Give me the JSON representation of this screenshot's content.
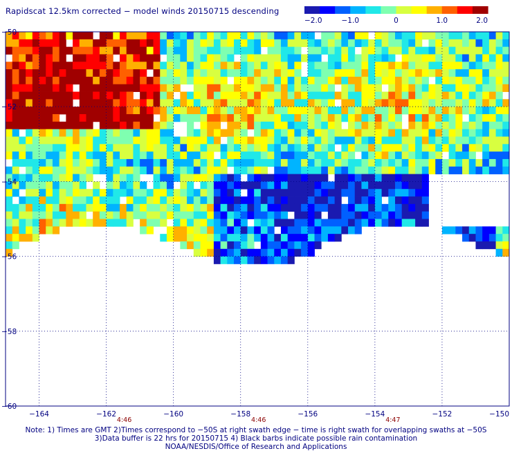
{
  "title": "Rapidscat 12.5km corrected − model winds 20150715 descending",
  "colorbar": {
    "min": -2.0,
    "max": 2.0,
    "tick_labels": [
      "−2.0",
      "−1.0",
      "0",
      "1.0",
      "2.0"
    ],
    "tick_values": [
      -2.0,
      -1.0,
      0,
      1.0,
      2.0
    ],
    "colors": [
      "#1a1ab0",
      "#0000ff",
      "#0060ff",
      "#00b4ff",
      "#20e8e8",
      "#7fffb0",
      "#d8ff40",
      "#ffff00",
      "#ffb000",
      "#ff6000",
      "#ff0000",
      "#a00000"
    ]
  },
  "chart_data": {
    "type": "heatmap",
    "title": "Rapidscat 12.5km corrected − model winds 20150715 descending",
    "xlabel": "",
    "ylabel": "",
    "xlim": [
      -165,
      -150
    ],
    "ylim": [
      -60,
      -50
    ],
    "x_ticks": [
      -164,
      -162,
      -160,
      -158,
      -156,
      -154,
      -152,
      -150
    ],
    "x_tick_labels": [
      "−164",
      "−162",
      "−160",
      "−158",
      "−156",
      "−154",
      "−152",
      "−150"
    ],
    "y_ticks": [
      -50,
      -52,
      -54,
      -56,
      -58,
      -60
    ],
    "y_tick_labels": [
      "−50",
      "−52",
      "−54",
      "−56",
      "−58",
      "−60"
    ],
    "time_labels": [
      {
        "lon": -162,
        "text": "4:46"
      },
      {
        "lon": -158,
        "text": "4:46"
      },
      {
        "lon": -154,
        "text": "4:47"
      }
    ],
    "grid": true,
    "value_range": [
      -2.0,
      2.0
    ],
    "cell_deg": 0.2,
    "data_extent_lat": [
      -56.3,
      -50.0
    ],
    "data_extent_lon": [
      -165,
      -150
    ],
    "description_regions": [
      {
        "name": "high-bias-northwest",
        "lon": [
          -165,
          -160.5
        ],
        "lat": [
          -52.5,
          -50
        ],
        "value": 1.8
      },
      {
        "name": "low-bias-band",
        "lon": [
          -159,
          -150.5
        ],
        "lat": [
          -56.2,
          -53.8
        ],
        "value": -1.6
      }
    ]
  },
  "notes": {
    "line1": "Note: 1) Times are GMT 2)Times correspond to −50S at right swath edge − time is right swath for overlapping swaths at −50S",
    "line2": "3)Data buffer is 22 hrs for 20150715 4) Black barbs indicate possible rain contamination",
    "line3": "NOAA/NESDIS/Office of Research and Applications"
  }
}
